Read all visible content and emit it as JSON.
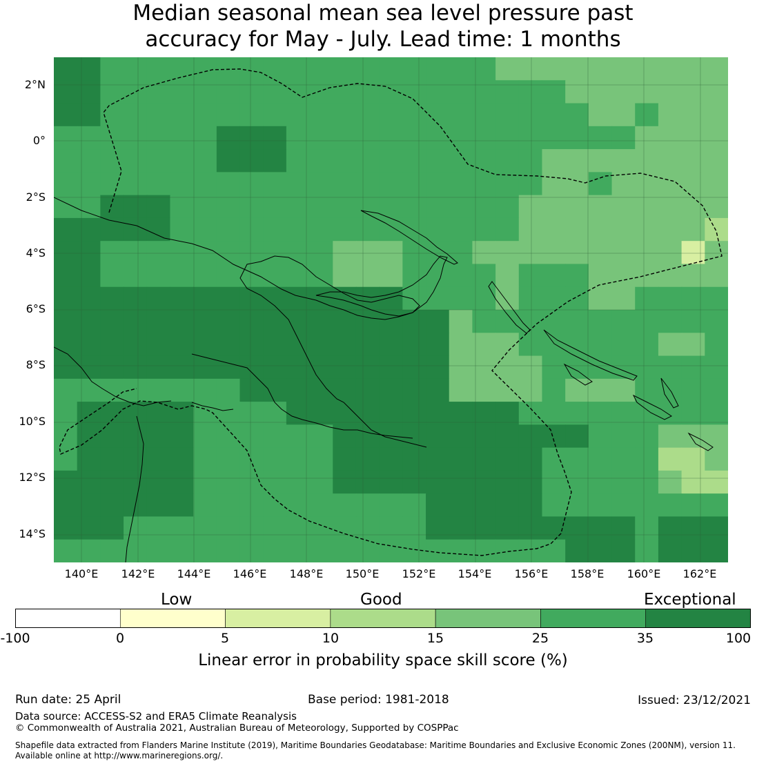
{
  "title": {
    "line1": "Median seasonal mean sea level pressure past",
    "line2": "accuracy for May - July. Lead time: 1 months"
  },
  "map": {
    "lat_labels": [
      "2°N",
      "0°",
      "2°S",
      "4°S",
      "6°S",
      "8°S",
      "10°S",
      "12°S",
      "14°S"
    ],
    "lon_labels": [
      "140°E",
      "142°E",
      "144°E",
      "146°E",
      "148°E",
      "150°E",
      "152°E",
      "154°E",
      "156°E",
      "158°E",
      "160°E",
      "162°E"
    ],
    "colors": {
      "lvl3": "#d8efa2",
      "lvl4": "#acdc8a",
      "lvl5": "#78c47a",
      "lvl6": "#41aa5e",
      "lvl7": "#238443"
    }
  },
  "legend": {
    "categories": [
      "Low",
      "Good",
      "Exceptional"
    ],
    "ticks": [
      "-100",
      "0",
      "5",
      "10",
      "15",
      "25",
      "35",
      "100"
    ],
    "colors": [
      "#ffffff",
      "#ffffcc",
      "#d8efa2",
      "#acdc8a",
      "#78c47a",
      "#41aa5e",
      "#238443"
    ],
    "label": "Linear error in probability space skill score (%)"
  },
  "footer": {
    "run_date": "Run date: 25 April",
    "base_period": "Base period: 1981-2018",
    "issued": "Issued: 23/12/2021",
    "data_source": "Data source: ACCESS-S2 and ERA5 Climate Reanalysis",
    "copyright": "© Commonwealth of Australia 2021, Australian Bureau of Meteorology, Supported by COSPPac",
    "shapefile_line1": "Shapefile data extracted from Flanders Marine Institute (2019), Maritime Boundaries Geodatabase: Maritime Boundaries and Exclusive Economic Zones (200NM), version 11.",
    "shapefile_line2": "Available online at http://www.marineregions.org/."
  }
}
